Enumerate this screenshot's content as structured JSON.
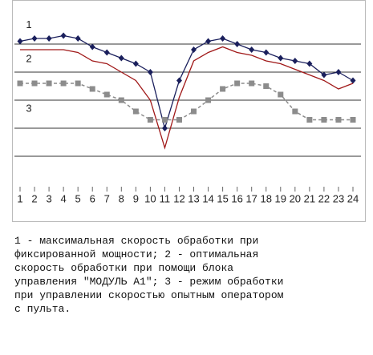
{
  "chart_data": {
    "type": "line",
    "categories": [
      "1",
      "2",
      "3",
      "4",
      "5",
      "6",
      "7",
      "8",
      "9",
      "10",
      "11",
      "12",
      "13",
      "14",
      "15",
      "16",
      "17",
      "18",
      "19",
      "20",
      "21",
      "22",
      "23",
      "24"
    ],
    "series": [
      {
        "name": "1",
        "color": "#1a1f5c",
        "marker": "diamond",
        "dash": false,
        "values": [
          5.1,
          5.2,
          5.2,
          5.3,
          5.2,
          4.9,
          4.7,
          4.5,
          4.3,
          4.0,
          2.0,
          3.7,
          4.8,
          5.1,
          5.2,
          5.0,
          4.8,
          4.7,
          4.5,
          4.4,
          4.3,
          3.9,
          4.0,
          3.7
        ]
      },
      {
        "name": "2",
        "color": "#a01818",
        "marker": "none",
        "dash": false,
        "values": [
          4.8,
          4.8,
          4.8,
          4.8,
          4.7,
          4.4,
          4.3,
          4.0,
          3.7,
          3.0,
          1.3,
          3.1,
          4.4,
          4.7,
          4.9,
          4.7,
          4.6,
          4.4,
          4.3,
          4.1,
          3.9,
          3.7,
          3.4,
          3.6
        ]
      },
      {
        "name": "3",
        "color": "#8c8c8c",
        "marker": "square",
        "dash": true,
        "values": [
          3.6,
          3.6,
          3.6,
          3.6,
          3.6,
          3.4,
          3.2,
          3.0,
          2.6,
          2.3,
          2.3,
          2.3,
          2.6,
          3.0,
          3.4,
          3.6,
          3.6,
          3.5,
          3.2,
          2.6,
          2.3,
          2.3,
          2.3,
          2.3
        ]
      }
    ],
    "ylim": [
      0,
      6
    ],
    "ygrid": [
      1,
      2,
      3,
      4,
      5
    ]
  },
  "caption_lines": [
    "1 - максимальная скорость обработки при",
    "фиксированной мощности; 2 - оптимальная",
    "скорость обработки при помощи блока",
    "управления \"МОДУЛЬ А1\"; 3 - режим обработки",
    "при управлении скоростью опытным оператором",
    "с пульта."
  ]
}
